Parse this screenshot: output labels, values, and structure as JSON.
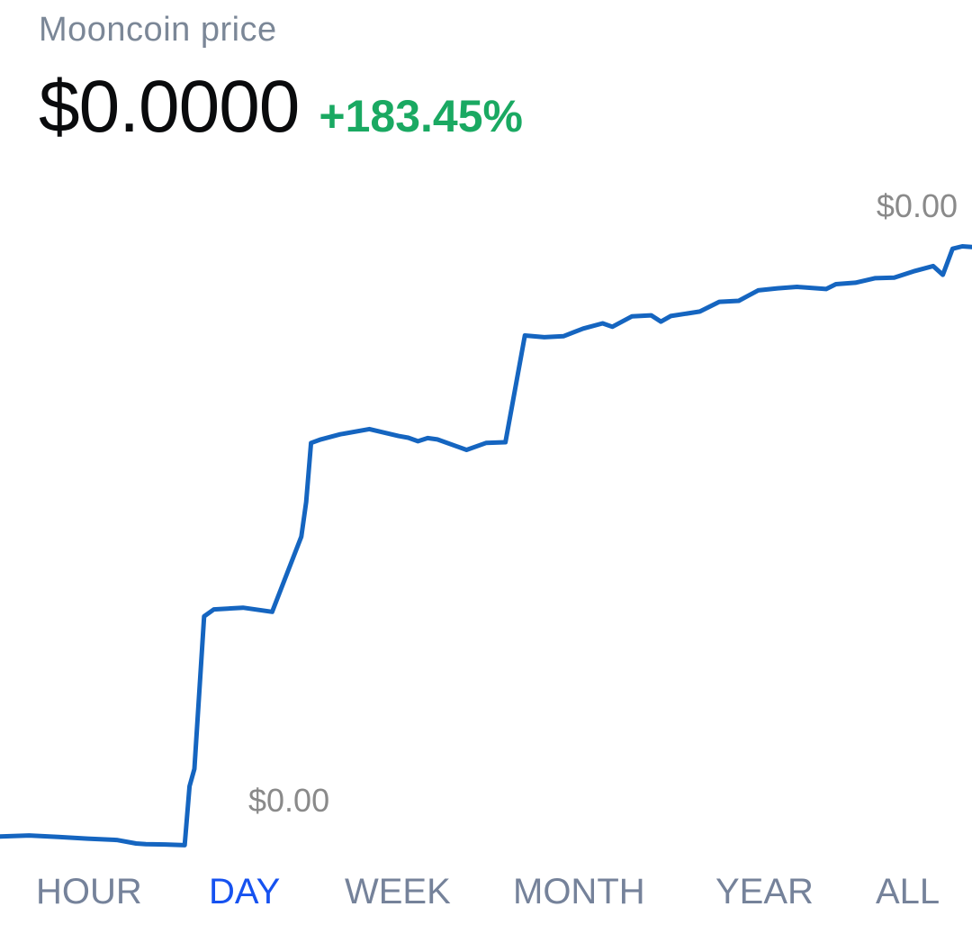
{
  "header": {
    "title": "Mooncoin price",
    "price": "$0.0000",
    "change": "+183.45%"
  },
  "colors": {
    "line": "#1565c0",
    "positive": "#1aa962",
    "active_tab": "#1652f0"
  },
  "chart_data": {
    "type": "line",
    "max_label": "$0.00",
    "min_label": "$0.00",
    "x": [
      0,
      3,
      6,
      9,
      12,
      14,
      15,
      17,
      19,
      19.5,
      20,
      21,
      22,
      25,
      28,
      31,
      31.5,
      32,
      33,
      35,
      38,
      41,
      42,
      43,
      44,
      45,
      48,
      50,
      52,
      54,
      56,
      58,
      60,
      62,
      63,
      64,
      65,
      67,
      68,
      69,
      72,
      74,
      76,
      77,
      78,
      80,
      82,
      85,
      86,
      88,
      90,
      92,
      94,
      96,
      97,
      98,
      99,
      100
    ],
    "series": [
      {
        "values": [
          18.5,
          18.8,
          18.4,
          17.9,
          17.5,
          16.5,
          16.3,
          16.2,
          16.0,
          33,
          38,
          82,
          84,
          84.5,
          83.3,
          105,
          115,
          132,
          133,
          134.5,
          136,
          134,
          133.5,
          132.5,
          133.4,
          133,
          130,
          132,
          132.2,
          163,
          162.5,
          162.8,
          165,
          166.5,
          165.5,
          167,
          168.5,
          168.8,
          167,
          168.6,
          169.9,
          172.7,
          173,
          174.5,
          176,
          176.6,
          177,
          176.4,
          177.8,
          178.2,
          179.5,
          179.7,
          181.5,
          183,
          180.5,
          188,
          188.7,
          188.5
        ]
      }
    ]
  },
  "tabs": [
    {
      "label": "HOUR",
      "active": false
    },
    {
      "label": "DAY",
      "active": true
    },
    {
      "label": "WEEK",
      "active": false
    },
    {
      "label": "MONTH",
      "active": false
    },
    {
      "label": "YEAR",
      "active": false
    },
    {
      "label": "ALL",
      "active": false
    }
  ]
}
